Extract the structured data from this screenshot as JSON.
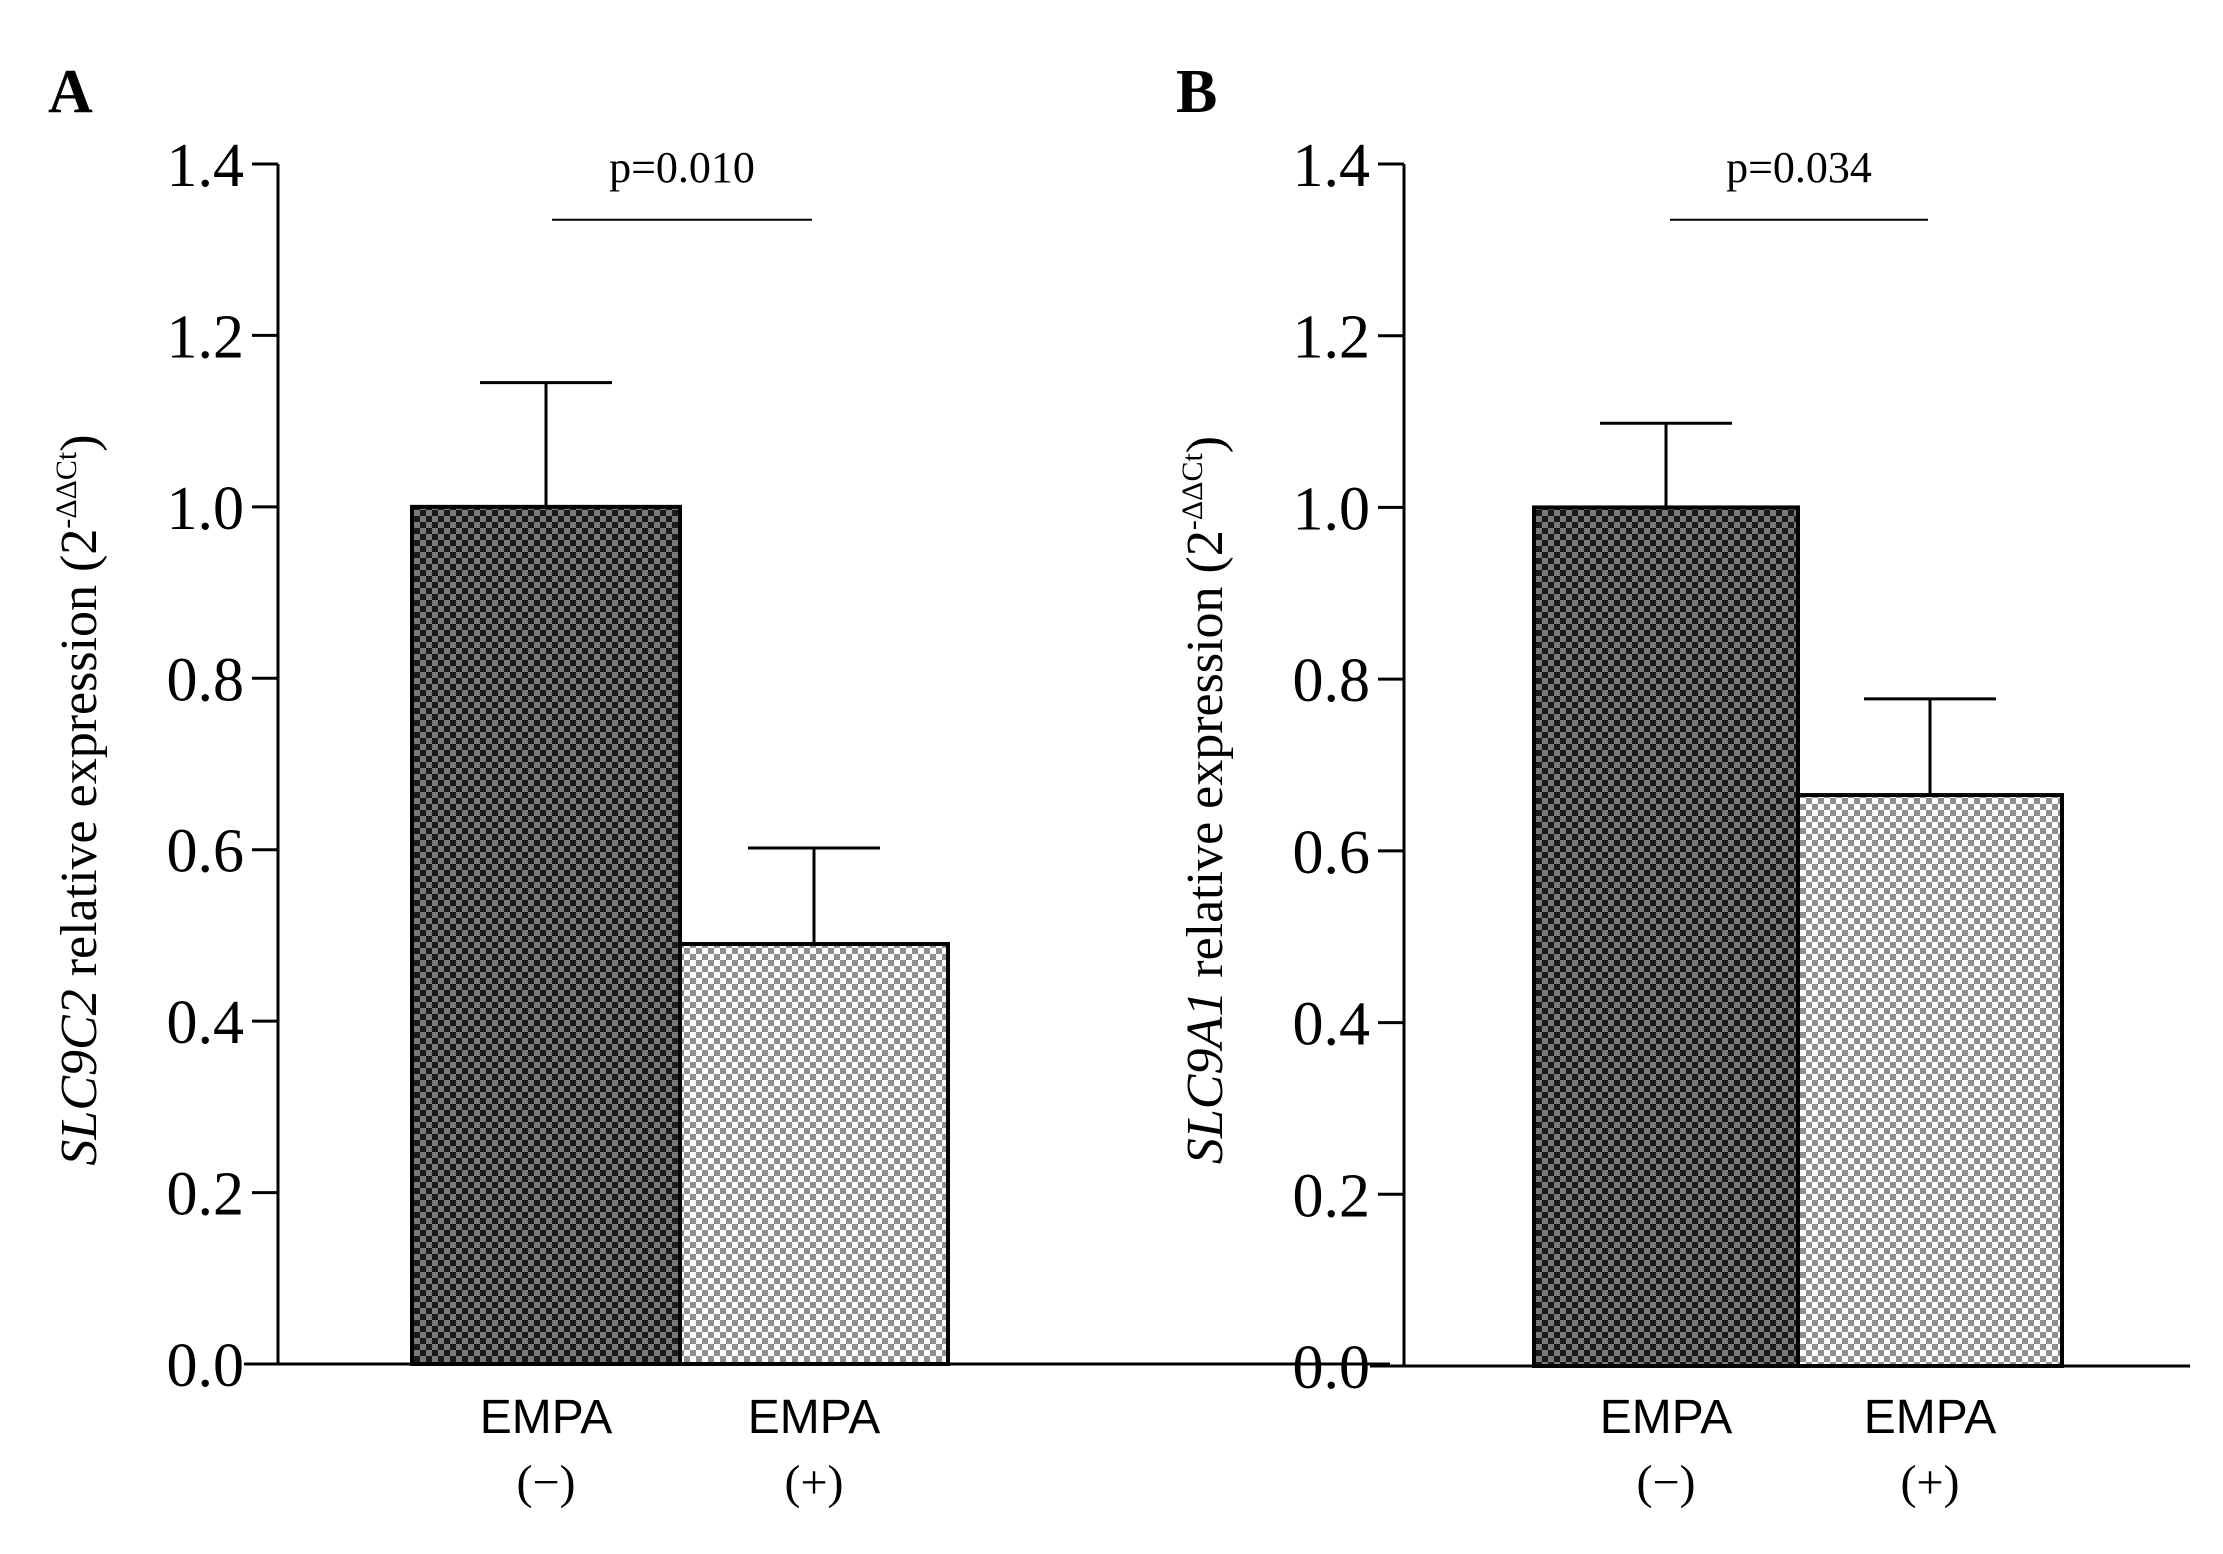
{
  "colors": {
    "axis": "#000000",
    "dark_bar_base": "#1a1a1a",
    "dark_bar_check": "#7a7a7a",
    "light_bar_base": "#ffffff",
    "light_bar_check": "#8f8f8f"
  },
  "chart_data": [
    {
      "panel": "A",
      "type": "bar",
      "categories": [
        {
          "line1": "EMPA",
          "line2": "(−)"
        },
        {
          "line1": "EMPA",
          "line2": "(+)"
        }
      ],
      "values": [
        1.0,
        0.49
      ],
      "errors": [
        0.145,
        0.112
      ],
      "ylabel_gene": "SLC9C2",
      "ylabel_text": " relative expression (2",
      "ylabel_sup": "-ΔΔCt",
      "ylabel_close": ")",
      "ylim": [
        0,
        1.4
      ],
      "yticks": [
        {
          "v": 0.0,
          "label": "0.0"
        },
        {
          "v": 0.2,
          "label": "0.2"
        },
        {
          "v": 0.4,
          "label": "0.4"
        },
        {
          "v": 0.6,
          "label": "0.6"
        },
        {
          "v": 0.8,
          "label": "0.8"
        },
        {
          "v": 1.0,
          "label": "1.0"
        },
        {
          "v": 1.2,
          "label": "1.2"
        },
        {
          "v": 1.4,
          "label": "1.4"
        }
      ],
      "significance": {
        "label": "p=0.010",
        "level": 1.335
      }
    },
    {
      "panel": "B",
      "type": "bar",
      "categories": [
        {
          "line1": "EMPA",
          "line2": "(−)"
        },
        {
          "line1": "EMPA",
          "line2": "(+)"
        }
      ],
      "values": [
        1.0,
        0.665
      ],
      "errors": [
        0.098,
        0.112
      ],
      "ylabel_gene": "SLC9A1",
      "ylabel_text": " relative expression (2",
      "ylabel_sup": "-ΔΔCt",
      "ylabel_close": ")",
      "ylim": [
        0,
        1.4
      ],
      "yticks": [
        {
          "v": 0.0,
          "label": "0.0"
        },
        {
          "v": 0.2,
          "label": "0.2"
        },
        {
          "v": 0.4,
          "label": "0.4"
        },
        {
          "v": 0.6,
          "label": "0.6"
        },
        {
          "v": 0.8,
          "label": "0.8"
        },
        {
          "v": 1.0,
          "label": "1.0"
        },
        {
          "v": 1.2,
          "label": "1.2"
        },
        {
          "v": 1.4,
          "label": "1.4"
        }
      ],
      "significance": {
        "label": "p=0.034",
        "level": 1.335
      }
    }
  ]
}
